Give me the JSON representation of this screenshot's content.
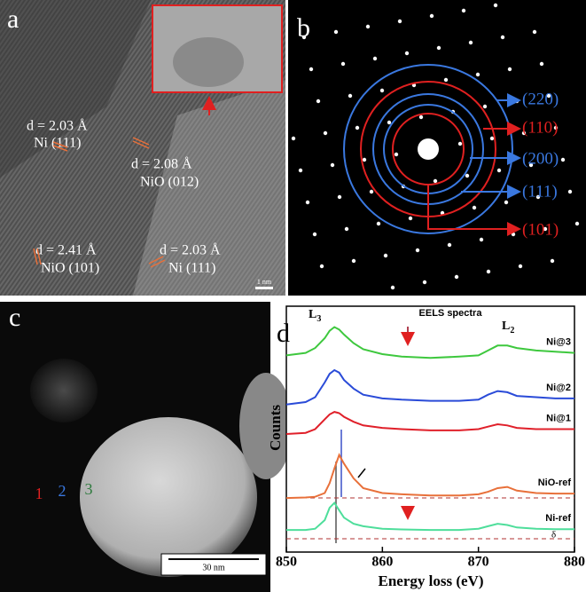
{
  "panel_a": {
    "label": "a",
    "annotations": [
      {
        "d": "d = 2.03 Å",
        "plane": "Ni (111)"
      },
      {
        "d": "d = 2.08 Å",
        "plane": "NiO (012)"
      },
      {
        "d": "d = 2.41 Å",
        "plane": "NiO (101)"
      },
      {
        "d": "d = 2.03 Å",
        "plane": "Ni (111)"
      }
    ],
    "scale_bar": "1 nm"
  },
  "panel_b": {
    "label": "b",
    "rings": [
      "(220)",
      "(110)",
      "(200)",
      "(111)",
      "(101)"
    ]
  },
  "panel_c": {
    "label": "c",
    "points": [
      "1",
      "2",
      "3"
    ],
    "scale_bar": "30 nm"
  },
  "chart_data": {
    "type": "line",
    "panel_label": "d",
    "title": "EELS spectra",
    "edge_labels": [
      {
        "letter": "L",
        "sub": "3"
      },
      {
        "letter": "L",
        "sub": "2"
      }
    ],
    "x_label": "Energy loss (eV)",
    "y_label": "Counts",
    "x": [
      850,
      852,
      853,
      854,
      854.5,
      855,
      855.5,
      856,
      857,
      858,
      860,
      862,
      865,
      868,
      870,
      871,
      872,
      873,
      874,
      876,
      878,
      880
    ],
    "xlim": [
      850,
      880
    ],
    "xticks": [
      850,
      860,
      870,
      880
    ],
    "ylim": [
      0,
      100
    ],
    "series": [
      {
        "name": "Ni@3",
        "color": "#3ec83e",
        "values": [
          80,
          81,
          83,
          87,
          90,
          91.5,
          90.5,
          88.5,
          85,
          82.5,
          80.5,
          79.5,
          79,
          79.5,
          80,
          82,
          84,
          84,
          83,
          82,
          81.5,
          81
        ]
      },
      {
        "name": "Ni@2",
        "color": "#2a4bd8",
        "values": [
          60,
          61,
          63,
          69,
          72.5,
          74,
          73,
          70,
          66.5,
          64,
          62.5,
          62,
          61.5,
          61.5,
          62,
          64,
          65.5,
          65,
          63.5,
          63,
          62.5,
          62.5
        ]
      },
      {
        "name": "Ni@1",
        "color": "#e0202a",
        "values": [
          48,
          48.5,
          50,
          54,
          56,
          57,
          56.5,
          55,
          53,
          51.5,
          50.5,
          50,
          49.5,
          49.5,
          50,
          51,
          52,
          51.5,
          50.5,
          50,
          50,
          50
        ]
      },
      {
        "name": "NiO-ref",
        "color": "#e8703a",
        "values": [
          22,
          22.2,
          22.5,
          24,
          28,
          34,
          39.5,
          36,
          30,
          26,
          24,
          23.5,
          23,
          23,
          23.5,
          24.5,
          26,
          26.5,
          25,
          24,
          23.8,
          23.8
        ]
      },
      {
        "name": "Ni-ref",
        "color": "#4ede9b",
        "values": [
          9,
          9,
          9.5,
          13,
          18,
          20,
          17,
          14,
          11.5,
          10.5,
          9.5,
          9.2,
          9,
          9,
          9.5,
          10.5,
          11.5,
          11,
          10,
          9.5,
          9.3,
          9.3
        ]
      }
    ],
    "delta_label": "δ"
  }
}
